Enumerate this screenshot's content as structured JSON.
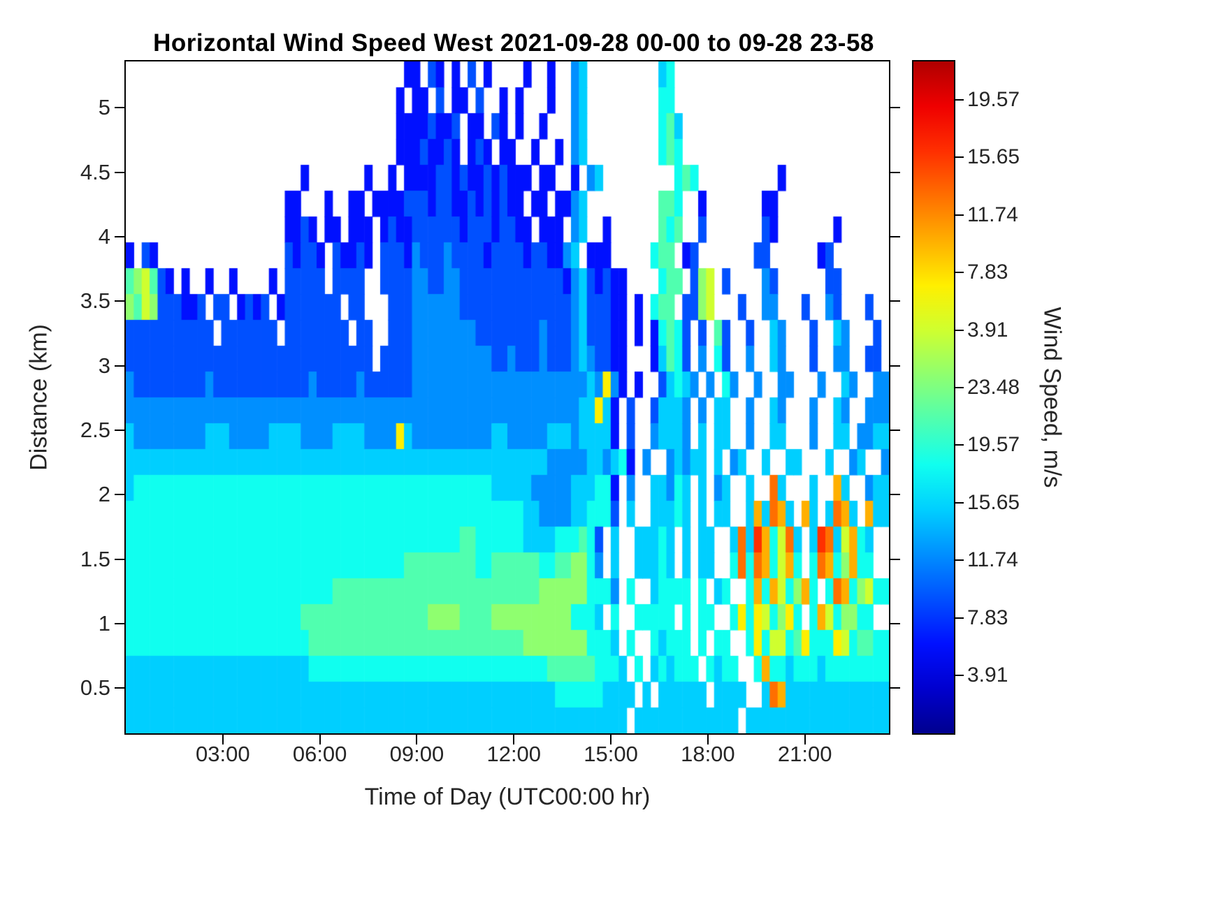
{
  "chart_data": {
    "type": "heatmap",
    "title": "Horizontal Wind Speed West 2021-09-28 00-00 to 09-28 23-58",
    "xlabel": "Time of Day (UTC00:00 hr)",
    "ylabel": "Distance (km)",
    "colorbar_label": "Wind Speed, m/s",
    "x_range_hours": [
      0,
      23.6
    ],
    "y_range_km": [
      0.15,
      5.36
    ],
    "x_ticks": [
      {
        "label": "03:00",
        "hour": 3
      },
      {
        "label": "06:00",
        "hour": 6
      },
      {
        "label": "09:00",
        "hour": 9
      },
      {
        "label": "12:00",
        "hour": 12
      },
      {
        "label": "15:00",
        "hour": 15
      },
      {
        "label": "18:00",
        "hour": 18
      },
      {
        "label": "21:00",
        "hour": 21
      }
    ],
    "y_ticks": [
      {
        "label": "5",
        "km": 5
      },
      {
        "label": "4.5",
        "km": 4.5
      },
      {
        "label": "4",
        "km": 4
      },
      {
        "label": "3.5",
        "km": 3.5
      },
      {
        "label": "3",
        "km": 3
      },
      {
        "label": "2.5",
        "km": 2.5
      },
      {
        "label": "2",
        "km": 2
      },
      {
        "label": "1.5",
        "km": 1.5
      },
      {
        "label": "1",
        "km": 1
      },
      {
        "label": "0.5",
        "km": 0.5
      }
    ],
    "colorbar_ticks_top_to_bottom": [
      "19.57",
      "15.65",
      "11.74",
      "7.83",
      "3.91",
      "23.48",
      "19.57",
      "15.65",
      "11.74",
      "7.83",
      "3.91"
    ],
    "no_data_color": "#FFFFFF",
    "palette": [
      "#00008F",
      "#0000CF",
      "#0010FF",
      "#0050FF",
      "#008FFF",
      "#00CFFF",
      "#10FFEF",
      "#50FFAF",
      "#8FFF6F",
      "#CFFF2F",
      "#FFEF00",
      "#FFAF00",
      "#FF6F00",
      "#FF2F00",
      "#EF0000",
      "#AF0000"
    ],
    "grid": {
      "encoding": "rows top-to-bottom (5.4km to 0.2km), 96 columns (00:00 to 24:00); hex char = palette index, '.' = no data",
      "cols": 96,
      "rows": [
        "...................................22.32.2.3.2....2..2..45.........56...........................",
        "..................................2.22.3.22.3..2.2...2..45.........66...........................",
        "..................................22223223.22.32.2..2...45.........675..........................",
        "..................................22232232.232.22..2..2.45.........676..........................",
        "......................2.......2..2.2222332322323222.22..2.45.........676..........2..............",
        "....................22...2..22.2222333233223232322.22.2245.........776..2.......22.............",
        "....................2232.22.222.2322333333233323322.222.45..2......767..3.......32.......2.....",
        "2.32................32332.32232.3332433343333233332332245.222.....677.23.......33......23.....",
        "789732.2..2..2....2.33333.3333..3333443344333333333333324532322....677.389.3....43......33.....",
        "8798333223.33.2323.23333333.33...33344444433333333333333453332 2.2.677.3389...3..44...3..43...3.",
        "33333333333.3333333.33333333.33..333444444443333333343334533322.2.26763.3.73..3..54...3..54...3.",
        "3333333333333333333333333333333.3333444444444433433343334543322...2576 3.4.63..4..54...3..44..33.",
        "433333333343333333333334333334333333444444444444444444444454a42.2..35654.4.64..4..44...4..54..443",
        "44444444444444444444444444444444444444444444444444444444455a52.3..35554.4.55..4..54...4..54..444",
        "544444444455544444555544445555444 4a544444444445544444555455552.3..45554.5.55..4..55...4..55.4455",
        "5555555555555555555555555555555555555555555555555555544444554562.4..45455.5.45..5..55...5..45..455",
        "566666666666666666666666666666666666666666666655555444445556 62.4..55465.5.45..5..c5...5..b5..455",
        "6666666666666666666666666666666666666666666666666655444455666 3.5..55565.5.55..5b5cb5.b5.5cb5.b55",
        "6666666666666666666666666666666666666666667766666655556667 63.5..55565.5.55..5c5db69c5.5dc59b65",
        "6666666666666666666666666666666666677777777766777777667788 64.5..55565.5.55..6c6cb69b6.6cb68b66",
        "66666666666666666666666666777777777777777777777777778888886664.6..56666.6.56..6b6b968b6.6cb68966",
        "666666666666666666666677777777777777778888777788888888886665.6..66666.6.66..6a6a968a6.6b968866",
        "666666666666666666666667777777777777777777777777778888888866 65.6..65666.6.66..6a69967a666a967766",
        "555555555555555555555556666666666666666666666666666667777776665.6.565666.6566..6b6656665666666666",
        "5555555555555555555555555555555555555555555555555555556666665555.5.555555.5555..5cb5555555555555555",
        "555555555555555555555555555555555555555555555555555555555555555.5555555555555.555555555555555555"
      ]
    }
  }
}
